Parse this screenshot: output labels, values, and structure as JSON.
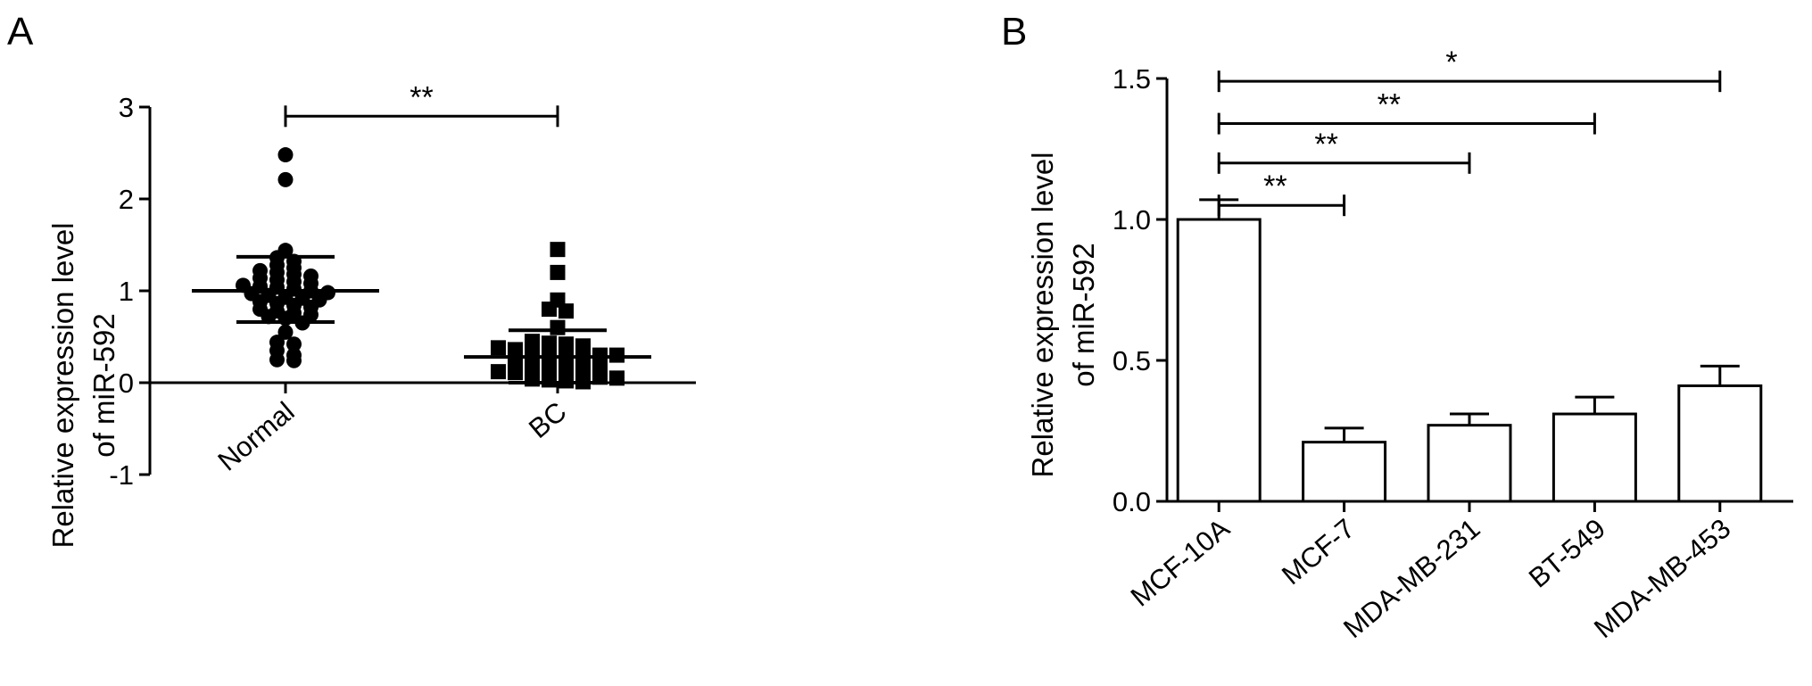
{
  "chart_data": [
    {
      "panel_label": "A",
      "type": "scatter",
      "ylabel": [
        "Relative expression level",
        "of miR-592"
      ],
      "ylim": [
        -1,
        3
      ],
      "yticks": [
        -1,
        0,
        1,
        2,
        3
      ],
      "categories": [
        "Normal",
        "BC"
      ],
      "groups": [
        {
          "name": "Normal",
          "marker": "circle",
          "mean": 1.0,
          "sd_upper": 1.37,
          "sd_lower": 0.66,
          "values": [
            2.48,
            2.21,
            1.44,
            1.36,
            1.32,
            1.28,
            1.25,
            1.22,
            1.2,
            1.18,
            1.16,
            1.14,
            1.12,
            1.1,
            1.08,
            1.06,
            1.05,
            1.04,
            1.02,
            1.0,
            0.98,
            0.97,
            0.95,
            0.93,
            0.92,
            0.9,
            0.88,
            0.86,
            0.84,
            0.82,
            0.8,
            0.78,
            0.76,
            0.74,
            0.72,
            0.7,
            0.65,
            0.55,
            0.44,
            0.42,
            0.35,
            0.3,
            0.25,
            0.24
          ]
        },
        {
          "name": "BC",
          "marker": "square",
          "mean": 0.28,
          "sd_upper": 0.57,
          "sd_lower": 0.0,
          "values": [
            1.45,
            1.2,
            0.9,
            0.8,
            0.78,
            0.6,
            0.45,
            0.43,
            0.42,
            0.4,
            0.38,
            0.36,
            0.35,
            0.34,
            0.33,
            0.32,
            0.3,
            0.3,
            0.28,
            0.27,
            0.26,
            0.25,
            0.24,
            0.22,
            0.2,
            0.18,
            0.17,
            0.16,
            0.15,
            0.14,
            0.12,
            0.11,
            0.1,
            0.09,
            0.08,
            0.07,
            0.06,
            0.05,
            0.04,
            0.03,
            0.02,
            0.01
          ]
        }
      ],
      "significance": [
        {
          "from": "Normal",
          "to": "BC",
          "y": 2.9,
          "label": "**"
        }
      ]
    },
    {
      "panel_label": "B",
      "type": "bar",
      "ylabel": [
        "Relative expression level",
        "of miR-592"
      ],
      "ylim": [
        0,
        1.5
      ],
      "yticks": [
        0.0,
        0.5,
        1.0,
        1.5
      ],
      "yticklabels": [
        "0.0",
        "0.5",
        "1.0",
        "1.5"
      ],
      "categories": [
        "MCF-10A",
        "MCF-7",
        "MDA-MB-231",
        "BT-549",
        "MDA-MB-453"
      ],
      "values": [
        1.0,
        0.21,
        0.27,
        0.31,
        0.41
      ],
      "errors": [
        0.07,
        0.05,
        0.04,
        0.06,
        0.07
      ],
      "significance": [
        {
          "from": 0,
          "to": 1,
          "y": 1.05,
          "label": "**"
        },
        {
          "from": 0,
          "to": 2,
          "y": 1.2,
          "label": "**"
        },
        {
          "from": 0,
          "to": 3,
          "y": 1.34,
          "label": "**"
        },
        {
          "from": 0,
          "to": 4,
          "y": 1.49,
          "label": "*"
        }
      ]
    }
  ]
}
